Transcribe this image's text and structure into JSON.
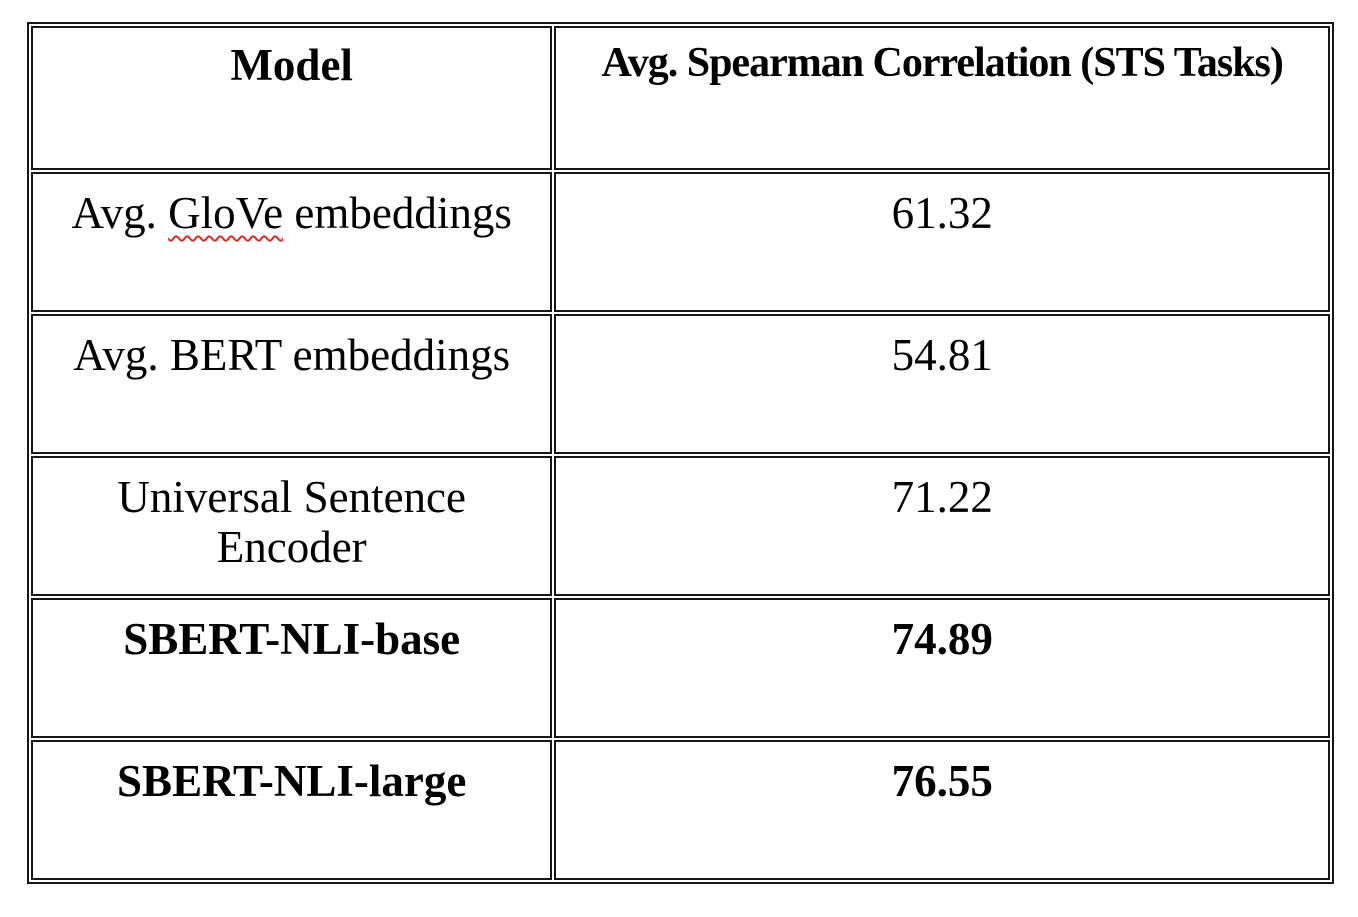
{
  "table": {
    "header": {
      "model": "Model",
      "score": "Avg. Spearman Correlation (STS Tasks)"
    },
    "rows": [
      {
        "model": "Avg. GloVe embeddings",
        "model_parts": {
          "prefix": "Avg. ",
          "spellcheck_word": "GloVe",
          "suffix": " embeddings"
        },
        "value": "61.32",
        "bold": false
      },
      {
        "model": "Avg. BERT embeddings",
        "value": "54.81",
        "bold": false
      },
      {
        "model": "Universal Sentence Encoder",
        "value": "71.22",
        "bold": false
      },
      {
        "model": "SBERT-NLI-base",
        "value": "74.89",
        "bold": true
      },
      {
        "model": "SBERT-NLI-large",
        "value": "76.55",
        "bold": true
      }
    ]
  },
  "colors": {
    "border": "#161616",
    "text": "#000000",
    "squiggle": "#df2c23",
    "background": "#ffffff"
  }
}
